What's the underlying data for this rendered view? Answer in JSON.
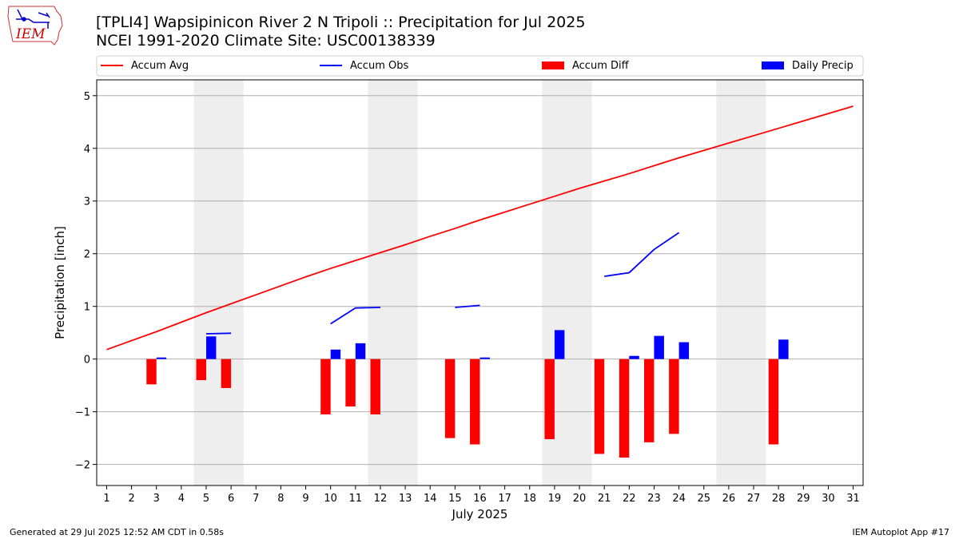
{
  "title_line1": "[TPLI4] Wapsipinicon River 2 N Tripoli :: Precipitation for Jul 2025",
  "title_line2": "NCEI 1991-2020 Climate Site: USC00138339",
  "logo_text": "IEM",
  "footer_left": "Generated at 29 Jul 2025 12:52 AM CDT in 0.58s",
  "footer_right": "IEM Autoplot App #17",
  "chart_data": {
    "type": "bar",
    "xlabel": "July 2025",
    "ylabel": "Precipitation [inch]",
    "xlim": [
      0.6,
      31.4
    ],
    "ylim": [
      -2.4,
      5.3
    ],
    "yticks": [
      5,
      4,
      3,
      2,
      1,
      0,
      -1,
      -2
    ],
    "ytick_labels": [
      "5",
      "4",
      "3",
      "2",
      "1",
      "0",
      "−1",
      "−2"
    ],
    "x": [
      1,
      2,
      3,
      4,
      5,
      6,
      7,
      8,
      9,
      10,
      11,
      12,
      13,
      14,
      15,
      16,
      17,
      18,
      19,
      20,
      21,
      22,
      23,
      24,
      25,
      26,
      27,
      28,
      29,
      30,
      31
    ],
    "weekend_shading": [
      [
        4.5,
        6.5
      ],
      [
        11.5,
        13.5
      ],
      [
        18.5,
        20.5
      ],
      [
        25.5,
        27.5
      ]
    ],
    "grid": "y",
    "legend": "top, single row",
    "colors": {
      "accum_avg": "#ff0000",
      "accum_obs": "#0000ff",
      "accum_diff": "#ff0000",
      "daily_precip": "#0000ff",
      "shade": "#eeeeee"
    },
    "series": [
      {
        "name": "Accum Avg",
        "kind": "line",
        "values": [
          0.18,
          0.35,
          0.52,
          0.7,
          0.88,
          1.05,
          1.22,
          1.39,
          1.56,
          1.72,
          1.87,
          2.02,
          2.17,
          2.33,
          2.48,
          2.64,
          2.79,
          2.94,
          3.09,
          3.24,
          3.38,
          3.52,
          3.67,
          3.82,
          3.96,
          4.1,
          4.24,
          4.38,
          4.52,
          4.66,
          4.8
        ]
      },
      {
        "name": "Accum Obs",
        "kind": "line",
        "segments": [
          [
            [
              5,
              0.48
            ],
            [
              6,
              0.49
            ]
          ],
          [
            [
              10,
              0.67
            ],
            [
              11,
              0.97
            ],
            [
              12,
              0.98
            ]
          ],
          [
            [
              15,
              0.98
            ],
            [
              16,
              1.02
            ]
          ],
          [
            [
              21,
              1.57
            ],
            [
              22,
              1.64
            ],
            [
              23,
              2.08
            ],
            [
              24,
              2.4
            ]
          ]
        ]
      },
      {
        "name": "Accum Diff",
        "kind": "bar",
        "points": [
          [
            3,
            -0.48
          ],
          [
            5,
            -0.4
          ],
          [
            6,
            -0.55
          ],
          [
            10,
            -1.05
          ],
          [
            11,
            -0.9
          ],
          [
            12,
            -1.05
          ],
          [
            15,
            -1.5
          ],
          [
            16,
            -1.62
          ],
          [
            19,
            -1.52
          ],
          [
            21,
            -1.8
          ],
          [
            22,
            -1.87
          ],
          [
            23,
            -1.58
          ],
          [
            24,
            -1.42
          ],
          [
            28,
            -1.62
          ]
        ]
      },
      {
        "name": "Daily Precip",
        "kind": "bar",
        "points": [
          [
            3,
            0.03
          ],
          [
            5,
            0.43
          ],
          [
            10,
            0.18
          ],
          [
            11,
            0.3
          ],
          [
            16,
            0.03
          ],
          [
            19,
            0.55
          ],
          [
            22,
            0.06
          ],
          [
            23,
            0.44
          ],
          [
            24,
            0.32
          ],
          [
            28,
            0.37
          ]
        ]
      }
    ]
  }
}
